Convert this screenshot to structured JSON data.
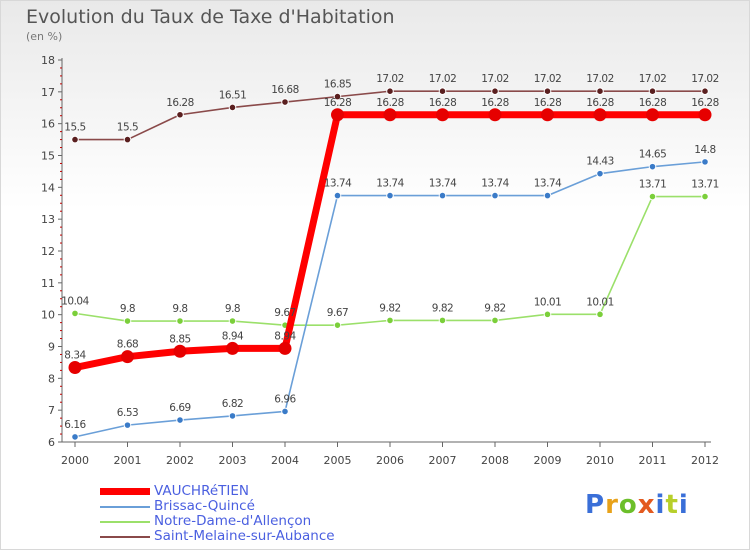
{
  "title": "Evolution du Taux de Taxe d'Habitation",
  "subtitle": "(en %)",
  "logo": {
    "text": "Proxiti",
    "colors": [
      "#3a6fd8",
      "#e8a21a",
      "#6cbf2a",
      "#e35a1f",
      "#3a6fd8",
      "#b7cf2a",
      "#3a6fd8"
    ]
  },
  "chart_data": {
    "type": "line",
    "title": "Evolution du Taux de Taxe d'Habitation",
    "ylabel": "(en %)",
    "xlabel": "",
    "x": [
      "2000",
      "2001",
      "2002",
      "2003",
      "2004",
      "2005",
      "2006",
      "2007",
      "2008",
      "2009",
      "2010",
      "2011",
      "2012"
    ],
    "ylim": [
      6,
      18
    ],
    "yticks": [
      "6",
      "7",
      "8",
      "9",
      "10",
      "11",
      "12",
      "13",
      "14",
      "15",
      "16",
      "17",
      "18"
    ],
    "grid": false,
    "legend_position": "bottom",
    "series": [
      {
        "name": "VAUCHRéTIEN",
        "color": "#ff0000",
        "point_color": "#e60000",
        "width": 7,
        "point_radius": 6.5,
        "values": [
          8.34,
          8.68,
          8.85,
          8.94,
          8.94,
          16.28,
          16.28,
          16.28,
          16.28,
          16.28,
          16.28,
          16.28,
          16.28
        ],
        "labels": [
          "8.34",
          "8.68",
          "8.85",
          "8.94",
          "8.94",
          "16.28",
          "16.28",
          "16.28",
          "16.28",
          "16.28",
          "16.28",
          "16.28",
          "16.28"
        ]
      },
      {
        "name": "Brissac-Quincé",
        "color": "#6a9fd8",
        "point_color": "#3a7bc8",
        "width": 1.6,
        "point_radius": 3.3,
        "values": [
          6.16,
          6.53,
          6.69,
          6.82,
          6.96,
          13.74,
          13.74,
          13.74,
          13.74,
          13.74,
          14.43,
          14.65,
          14.8
        ],
        "labels": [
          "6.16",
          "6.53",
          "6.69",
          "6.82",
          "6.96",
          "13.74",
          "13.74",
          "13.74",
          "13.74",
          "13.74",
          "14.43",
          "14.65",
          "14.8"
        ]
      },
      {
        "name": "Notre-Dame-d'Allençon",
        "color": "#9be06a",
        "point_color": "#7bcf3a",
        "width": 1.6,
        "point_radius": 3.3,
        "values": [
          10.04,
          9.8,
          9.8,
          9.8,
          9.67,
          9.67,
          9.82,
          9.82,
          9.82,
          10.01,
          10.01,
          13.71,
          13.71
        ],
        "labels": [
          "10.04",
          "9.8",
          "9.8",
          "9.8",
          "9.67",
          "9.67",
          "9.82",
          "9.82",
          "9.82",
          "10.01",
          "10.01",
          "13.71",
          "13.71"
        ]
      },
      {
        "name": "Saint-Melaine-sur-Aubance",
        "color": "#8a4a4a",
        "point_color": "#5a1f1f",
        "width": 1.6,
        "point_radius": 3.3,
        "values": [
          15.5,
          15.5,
          16.28,
          16.51,
          16.68,
          16.85,
          17.02,
          17.02,
          17.02,
          17.02,
          17.02,
          17.02,
          17.02
        ],
        "labels": [
          "15.5",
          "15.5",
          "16.28",
          "16.51",
          "16.68",
          "16.85",
          "17.02",
          "17.02",
          "17.02",
          "17.02",
          "17.02",
          "17.02",
          "17.02"
        ]
      }
    ]
  }
}
